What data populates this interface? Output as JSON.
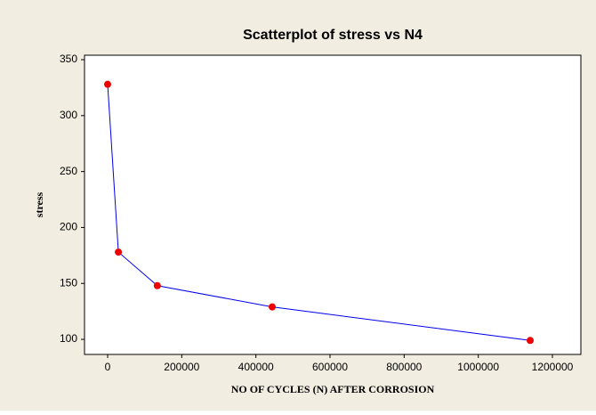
{
  "chart_data": {
    "type": "scatter",
    "title": "Scatterplot of stress vs N4",
    "x_label": "NO OF CYCLES (N) AFTER CORROSION",
    "y_label": "stress",
    "series": [
      {
        "name": "stress",
        "color": "#ee0000",
        "line_color": "#0000ee",
        "x": [
          0,
          29000,
          134000,
          444000,
          1140000
        ],
        "values": [
          328,
          178,
          148,
          129,
          99
        ]
      }
    ],
    "xlim": [
      -62400,
      1276800
    ],
    "xticks": [
      0,
      200000,
      400000,
      600000,
      800000,
      1000000,
      1200000
    ],
    "ylim": [
      86.5,
      354
    ],
    "yticks": [
      100,
      150,
      200,
      250,
      300,
      350
    ]
  }
}
